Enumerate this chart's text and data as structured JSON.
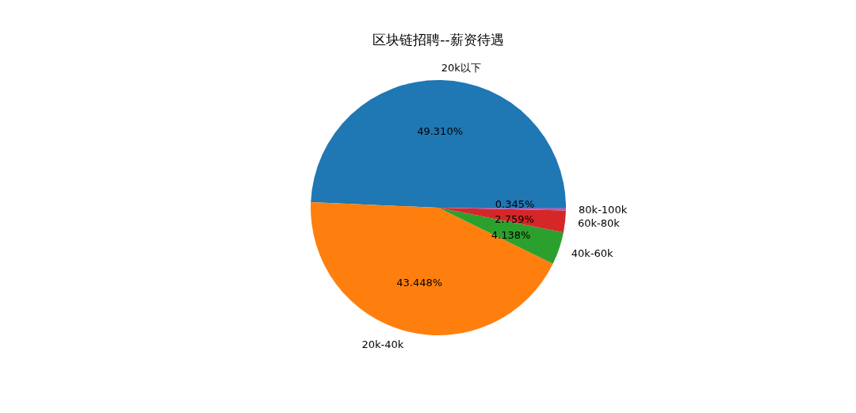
{
  "chart_data": {
    "type": "pie",
    "title": "区块链招聘--薪资待遇",
    "categories": [
      "20k以下",
      "20k-40k",
      "40k-60k",
      "60k-80k",
      "80k-100k"
    ],
    "values": [
      49.31,
      43.448,
      4.138,
      2.759,
      0.345
    ],
    "colors": [
      "#1f77b4",
      "#ff7f0e",
      "#2ca02c",
      "#d62728",
      "#9467bd"
    ],
    "value_labels": [
      "49.310%",
      "43.448%",
      "4.138%",
      "2.759%",
      "0.345%"
    ]
  }
}
